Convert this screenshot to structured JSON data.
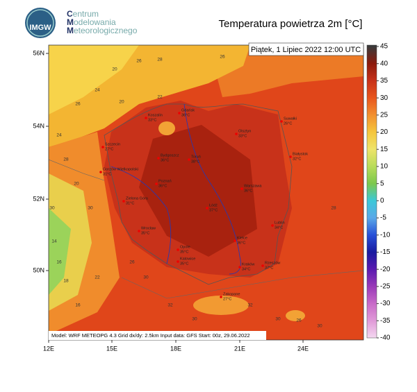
{
  "header": {
    "logo_text": "IMGW",
    "org_lines": [
      "Centrum",
      "Modelowania",
      "Meteorologicznego"
    ],
    "title": "Temperatura powietrza 2m [°C]"
  },
  "map": {
    "valid_time": "Piątek, 1 Lipiec 2022 12:00 UTC",
    "footer": "Model: WRF METEOPG 4.3  Grid dx/dy: 2.5km  Input data: GFS  Start: 00z, 29.06.2022",
    "lat_labels": [
      "56N",
      "54N",
      "52N",
      "50N"
    ],
    "lon_labels": [
      "12E",
      "15E",
      "18E",
      "21E",
      "24E"
    ],
    "cities": [
      {
        "name": "Koszalin",
        "label": "33°C"
      },
      {
        "name": "Gdańsk",
        "label": "36°C"
      },
      {
        "name": "Olsztyn",
        "label": "33°C"
      },
      {
        "name": "Suwałki",
        "label": "26°C"
      },
      {
        "name": "Szczecin",
        "label": "27°C"
      },
      {
        "name": "Bydgoszcz",
        "label": "36°C"
      },
      {
        "name": "Toruń",
        "label": "38°C"
      },
      {
        "name": "Białystok",
        "label": "32°C"
      },
      {
        "name": "Gorzów Wielkopolski",
        "label": "31°C"
      },
      {
        "name": "Poznań",
        "label": "36°C"
      },
      {
        "name": "Warszawa",
        "label": "36°C"
      },
      {
        "name": "Zielona Góra",
        "label": "31°C"
      },
      {
        "name": "Łódź",
        "label": "37°C"
      },
      {
        "name": "Lublin",
        "label": "34°C"
      },
      {
        "name": "Wrocław",
        "label": "35°C"
      },
      {
        "name": "Kielce",
        "label": "36°C"
      },
      {
        "name": "Opole",
        "label": "35°C"
      },
      {
        "name": "Katowice",
        "label": "35°C"
      },
      {
        "name": "Kraków",
        "label": "34°C"
      },
      {
        "name": "Rzeszów",
        "label": "37°C"
      },
      {
        "name": "Zakopane",
        "label": "27°C"
      }
    ],
    "isotherm_labels": [
      "26",
      "28",
      "20",
      "24",
      "26",
      "20",
      "22",
      "26",
      "24",
      "28",
      "30",
      "30",
      "20",
      "14",
      "16",
      "18",
      "22",
      "16",
      "26",
      "30",
      "32",
      "30",
      "32",
      "30",
      "26",
      "30",
      "28"
    ]
  },
  "colorbar": {
    "ticks": [
      45,
      40,
      35,
      30,
      25,
      20,
      15,
      10,
      5,
      0,
      -5,
      -10,
      -15,
      -20,
      -25,
      -30,
      -35,
      -40
    ],
    "colors": [
      "#3a3a3a",
      "#8c1a0c",
      "#c8321a",
      "#e8561e",
      "#f29030",
      "#f5c63c",
      "#eee46a",
      "#b8dc5a",
      "#7cc84c",
      "#3cc8d8",
      "#5aa8e8",
      "#2850d8",
      "#1a1aa0",
      "#5a1ab0",
      "#9a3ab8",
      "#c86ac8",
      "#e09ad8",
      "#f4d8f0"
    ]
  }
}
